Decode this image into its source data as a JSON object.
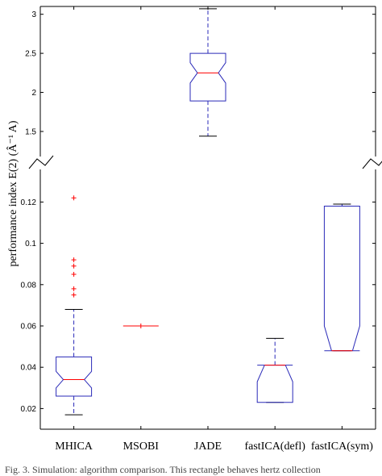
{
  "chart_data": {
    "type": "box",
    "ylabel": "performance index E(2) (Â⁻¹ A)",
    "categories": [
      "MHICA",
      "MSOBI",
      "JADE",
      "fastICA(defl)",
      "fastICA(sym)"
    ],
    "upper_panel": {
      "ylim": [
        1.2,
        3.1
      ],
      "yticks": [
        1.5,
        2,
        2.5,
        3
      ]
    },
    "lower_panel": {
      "ylim": [
        0.01,
        0.135
      ],
      "yticks": [
        0.02,
        0.04,
        0.06,
        0.08,
        0.1,
        0.12
      ]
    },
    "boxes": [
      {
        "name": "MHICA",
        "panel": "lower",
        "whisker_low": 0.017,
        "q1": 0.026,
        "median": 0.034,
        "q3": 0.045,
        "whisker_high": 0.068,
        "notch_low": 0.03,
        "notch_high": 0.038,
        "outliers": [
          0.075,
          0.078,
          0.085,
          0.089,
          0.092,
          0.122
        ]
      },
      {
        "name": "MSOBI",
        "panel": "lower",
        "whisker_low": 0.06,
        "q1": 0.06,
        "median": 0.06,
        "q3": 0.06,
        "whisker_high": 0.06,
        "outliers": [
          0.06
        ]
      },
      {
        "name": "JADE",
        "panel": "upper",
        "whisker_low": 1.44,
        "q1": 1.89,
        "median": 2.25,
        "q3": 2.5,
        "whisker_high": 3.07,
        "notch_low": 2.12,
        "notch_high": 2.38,
        "outliers": []
      },
      {
        "name": "fastICA(defl)",
        "panel": "lower",
        "whisker_low": 0.023,
        "q1": 0.023,
        "median": 0.041,
        "q3": 0.041,
        "whisker_high": 0.054,
        "notch_low": 0.033,
        "notch_high": 0.049,
        "outliers": []
      },
      {
        "name": "fastICA(sym)",
        "panel": "lower",
        "whisker_low": 0.048,
        "q1": 0.048,
        "median": 0.048,
        "q3": 0.118,
        "whisker_high": 0.119,
        "notch_low": 0.04,
        "notch_high": 0.06,
        "outliers": []
      }
    ],
    "colors": {
      "box": "#2a2ab8",
      "median": "#ff0000",
      "outlier": "#ff0000",
      "whisker": "#2a2ab8",
      "cap": "#000000",
      "axis": "#000000"
    }
  },
  "caption_fragment": "Fig. 3.   Simulation: algorithm comparison. This rectangle behaves hertz collection"
}
